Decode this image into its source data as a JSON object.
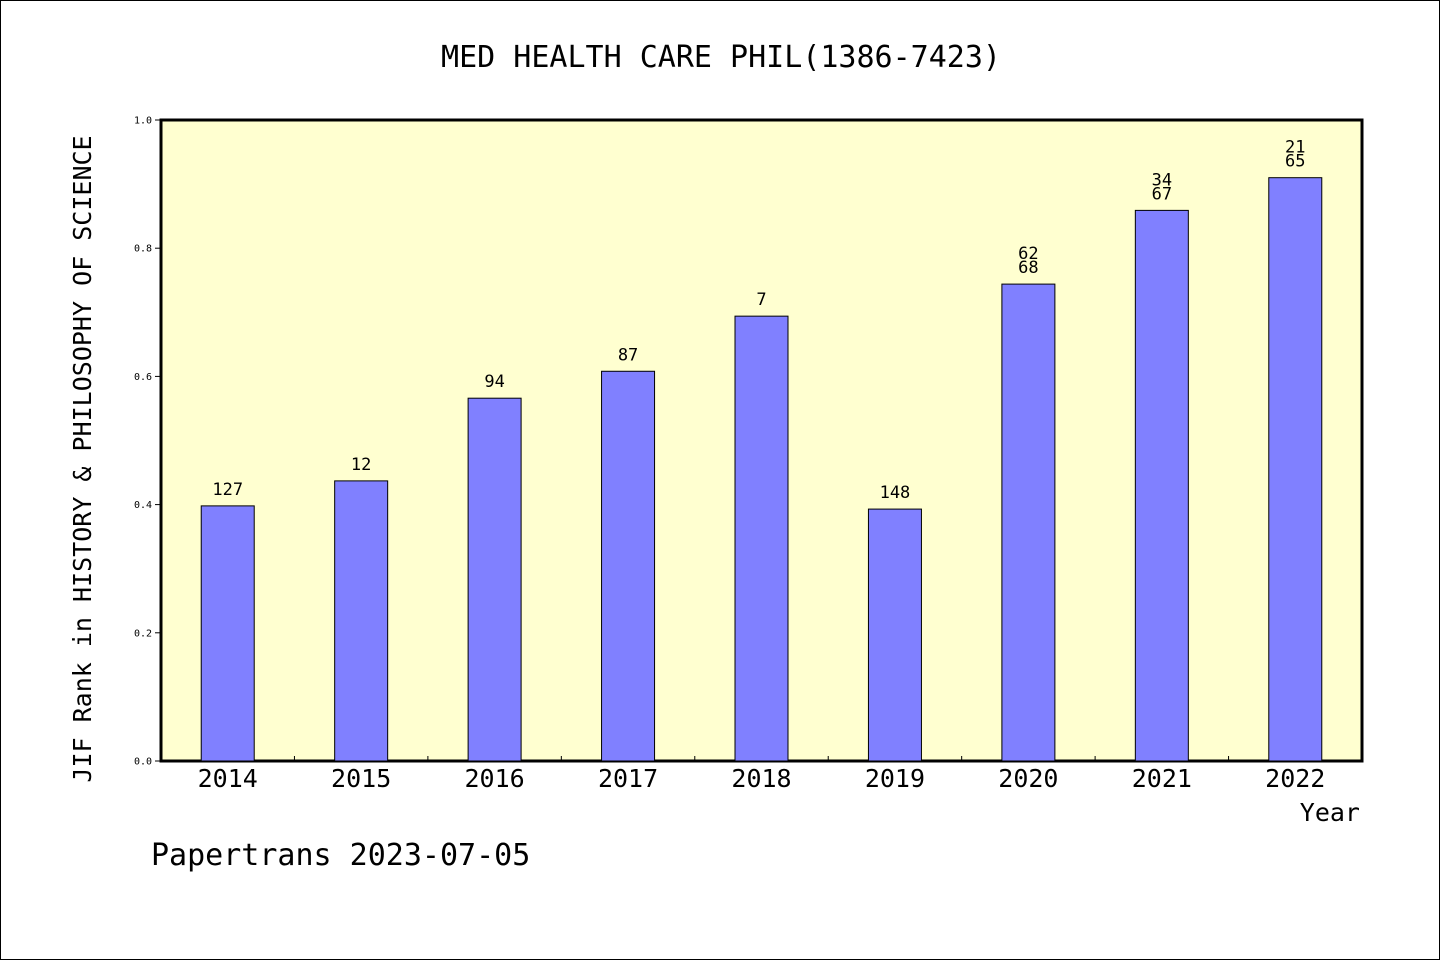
{
  "chart_data": {
    "type": "bar",
    "title": "MED HEALTH CARE PHIL(1386-7423)",
    "xlabel": "Year",
    "ylabel": "JIF Rank in HISTORY & PHILOSOPHY OF SCIENCE",
    "ylim": [
      0,
      1.0
    ],
    "yticks": [
      "0.0",
      "0.2",
      "0.4",
      "0.6",
      "0.8",
      "1.0"
    ],
    "categories": [
      "2014",
      "2015",
      "2016",
      "2017",
      "2018",
      "2019",
      "2020",
      "2021",
      "2022"
    ],
    "values": [
      0.398,
      0.437,
      0.566,
      0.608,
      0.694,
      0.393,
      0.744,
      0.859,
      0.91
    ],
    "bar_labels": [
      [
        "127"
      ],
      [
        "12"
      ],
      [
        "94"
      ],
      [
        "87"
      ],
      [
        "7"
      ],
      [
        "148"
      ],
      [
        "62",
        "68"
      ],
      [
        "34",
        "67"
      ],
      [
        "21",
        "65"
      ]
    ],
    "grid": false,
    "colors": {
      "bar_fill": "#8080ff",
      "plot_background": "#ffffd0",
      "outline": "#000000"
    }
  },
  "footer": {
    "text": "Papertrans 2023-07-05"
  }
}
